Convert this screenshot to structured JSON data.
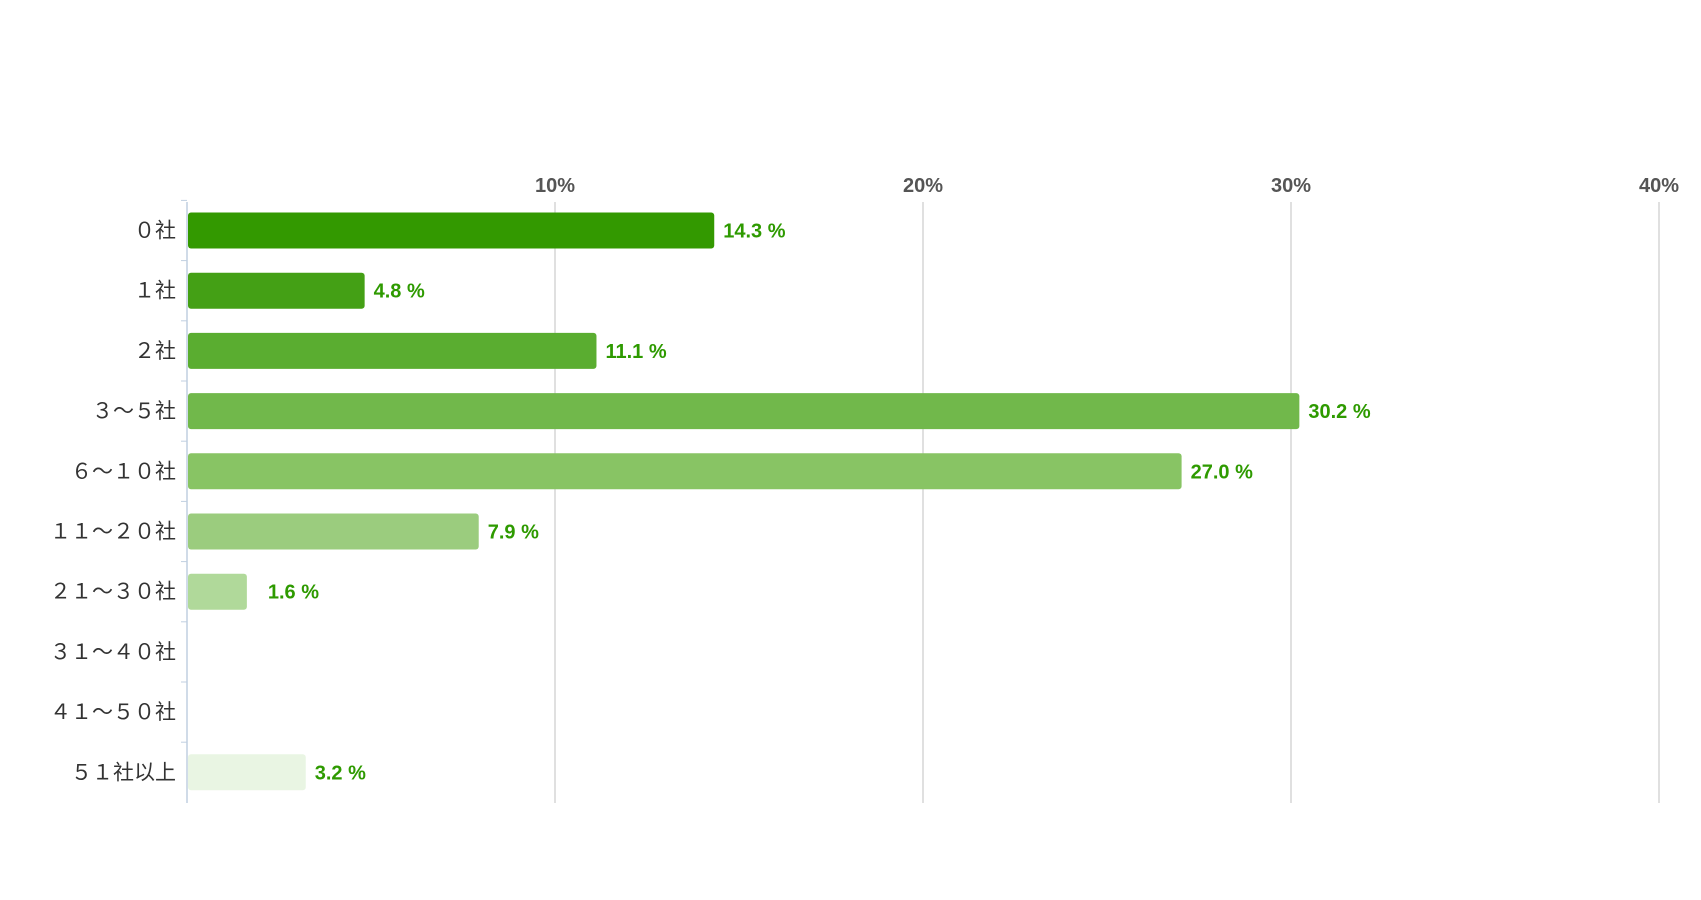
{
  "chart_data": {
    "type": "bar",
    "orientation": "horizontal",
    "categories": [
      "０社",
      "１社",
      "２社",
      "３～５社",
      "６～１０社",
      "１１～２０社",
      "２１～３０社",
      "３１～４０社",
      "４１～５０社",
      "５１社以上"
    ],
    "values": [
      14.3,
      4.8,
      11.1,
      30.2,
      27.0,
      7.9,
      1.6,
      0,
      0,
      3.2
    ],
    "value_labels": [
      "14.3 %",
      "4.8 %",
      "11.1 %",
      "30.2 %",
      "27.0 %",
      "7.9 %",
      "1.6 %",
      "",
      "",
      "3.2 %"
    ],
    "xlim": [
      0,
      40
    ],
    "xticks": [
      10,
      20,
      30,
      40
    ],
    "xtick_labels": [
      "10%",
      "20%",
      "30%",
      "40%"
    ],
    "xaxis_position": "top",
    "grid": true,
    "legend": "none",
    "title": "",
    "xlabel": "",
    "ylabel": "",
    "colors": {
      "bars": [
        "#339900",
        "#44a015",
        "#5aad30",
        "#71b84b",
        "#88c464",
        "#9bcc7e",
        "#b0d99a",
        "#c6e4b6",
        "#d8edcc",
        "#e9f5e3"
      ],
      "value_label": "#2e9a00",
      "grid": "#cccccc",
      "axis": "#c0cfe0"
    }
  }
}
